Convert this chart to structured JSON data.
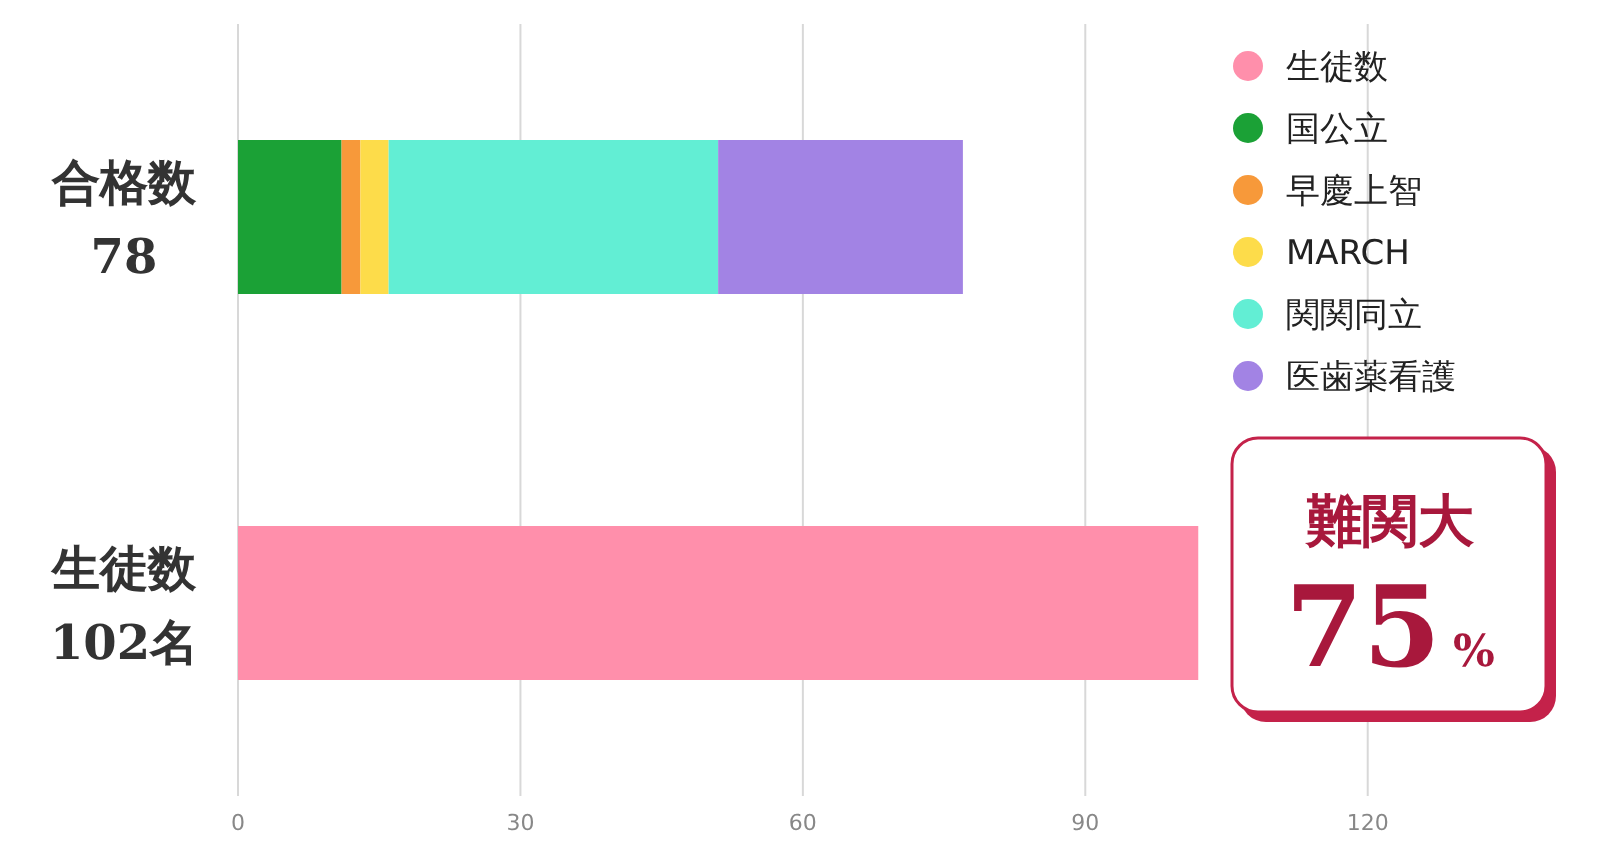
{
  "chart_data": {
    "type": "bar",
    "orientation": "horizontal",
    "stacked": true,
    "categories": [
      "合格数\n78",
      "生徒数\n102名"
    ],
    "series": [
      {
        "name": "生徒数",
        "color": "#ff8fab",
        "values": [
          null,
          102
        ]
      },
      {
        "name": "国公立",
        "color": "#1ba136",
        "values": [
          11,
          null
        ]
      },
      {
        "name": "早慶上智",
        "color": "#f7993a",
        "values": [
          2,
          null
        ]
      },
      {
        "name": "MARCH",
        "color": "#fddc4a",
        "values": [
          3,
          null
        ]
      },
      {
        "name": "関関同立",
        "color": "#62eed4",
        "values": [
          35,
          null
        ]
      },
      {
        "name": "医歯薬看護",
        "color": "#a283e4",
        "values": [
          26,
          null
        ]
      }
    ],
    "xlim": [
      0,
      140
    ],
    "xticks": [
      0,
      30,
      60,
      90,
      120
    ],
    "grid": "x",
    "legend": "top right",
    "marker": "circle",
    "annotations": [
      "難関大",
      "75%"
    ]
  }
}
